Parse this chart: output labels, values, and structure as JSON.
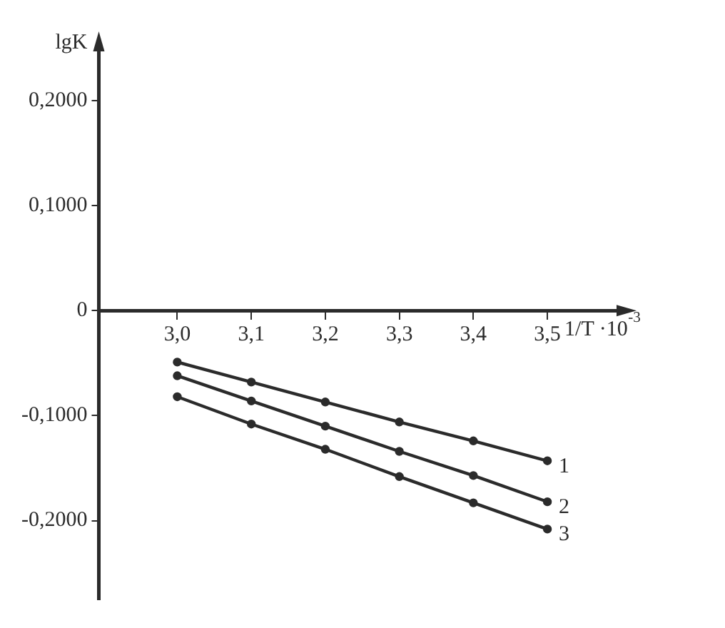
{
  "chart_data": {
    "type": "line",
    "xlabel": "1/T ·10$^{-3}$",
    "ylabel": "lgK",
    "x": [
      3.0,
      3.1,
      3.2,
      3.3,
      3.4,
      3.5
    ],
    "series": [
      {
        "name": "1",
        "color": "#2b2b2b",
        "values": [
          -0.049,
          -0.068,
          -0.087,
          -0.106,
          -0.124,
          -0.143
        ]
      },
      {
        "name": "2",
        "color": "#2b2b2b",
        "values": [
          -0.062,
          -0.086,
          -0.11,
          -0.134,
          -0.157,
          -0.182
        ]
      },
      {
        "name": "3",
        "color": "#2b2b2b",
        "values": [
          -0.082,
          -0.108,
          -0.132,
          -0.158,
          -0.183,
          -0.208
        ]
      }
    ],
    "xlim": [
      2.894,
      3.605
    ],
    "ylim": [
      -0.275,
      0.255
    ],
    "xticks": [
      {
        "value": 3.0,
        "label": "3,0"
      },
      {
        "value": 3.1,
        "label": "3,1"
      },
      {
        "value": 3.2,
        "label": "3,2"
      },
      {
        "value": 3.3,
        "label": "3,3"
      },
      {
        "value": 3.4,
        "label": "3,4"
      },
      {
        "value": 3.5,
        "label": "3,5"
      }
    ],
    "yticks": [
      {
        "value": -0.2,
        "label": "-0,2000"
      },
      {
        "value": -0.1,
        "label": "-0,1000"
      },
      {
        "value": 0,
        "label": "0"
      },
      {
        "value": 0.1,
        "label": "0,1000"
      },
      {
        "value": 0.2,
        "label": "0,2000"
      }
    ],
    "grid": false,
    "legend": false,
    "marker": "circle",
    "line_style": "solid"
  }
}
